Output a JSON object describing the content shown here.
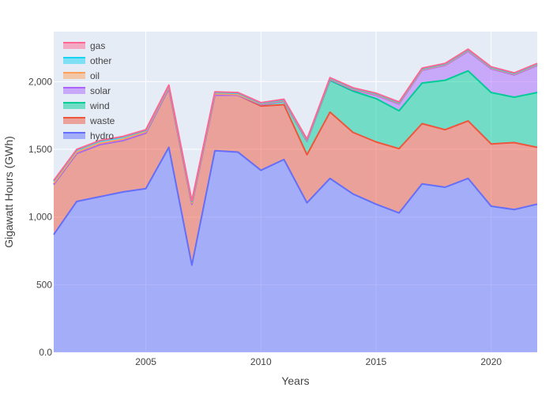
{
  "chart_data": {
    "type": "area",
    "stacked": true,
    "xlabel": "Years",
    "ylabel": "Gigawatt Hours (GWh)",
    "xlim": [
      2001,
      2022
    ],
    "ylim": [
      0,
      2370
    ],
    "x_ticks": [
      2005,
      2010,
      2015,
      2020
    ],
    "y_ticks": [
      0,
      500,
      1000,
      1500,
      2000
    ],
    "y_tick_labels": [
      "0.0",
      "500",
      "1,000",
      "1,500",
      "2,000"
    ],
    "grid": true,
    "legend_position": "top-left",
    "background": "#e5ecf6",
    "x": [
      2001,
      2002,
      2003,
      2004,
      2005,
      2006,
      2007,
      2008,
      2009,
      2010,
      2011,
      2012,
      2013,
      2014,
      2015,
      2016,
      2017,
      2018,
      2019,
      2020,
      2021,
      2022
    ],
    "series": [
      {
        "name": "hydro",
        "color": "#636efa",
        "values": [
          870,
          1115,
          1150,
          1185,
          1210,
          1515,
          645,
          1490,
          1480,
          1345,
          1425,
          1105,
          1285,
          1170,
          1095,
          1030,
          1245,
          1220,
          1285,
          1080,
          1055,
          1095
        ]
      },
      {
        "name": "waste",
        "color": "#ef553b",
        "values": [
          370,
          355,
          385,
          380,
          410,
          435,
          450,
          410,
          420,
          475,
          405,
          355,
          490,
          455,
          460,
          475,
          445,
          425,
          425,
          460,
          495,
          420
        ]
      },
      {
        "name": "wind",
        "color": "#00cc96",
        "values": [
          0,
          0,
          0,
          0,
          0,
          0,
          0,
          0,
          0,
          10,
          25,
          100,
          235,
          305,
          320,
          280,
          300,
          365,
          370,
          380,
          335,
          405
        ]
      },
      {
        "name": "solar",
        "color": "#ab63fa",
        "values": [
          0,
          0,
          0,
          0,
          0,
          0,
          0,
          0,
          0,
          0,
          0,
          0,
          5,
          10,
          25,
          50,
          95,
          110,
          145,
          175,
          165,
          200
        ]
      },
      {
        "name": "oil",
        "color": "#ffa15a",
        "values": [
          10,
          10,
          10,
          10,
          10,
          10,
          10,
          10,
          5,
          5,
          5,
          5,
          5,
          5,
          5,
          5,
          5,
          5,
          5,
          5,
          5,
          5
        ]
      },
      {
        "name": "other",
        "color": "#19d3f3",
        "values": [
          15,
          15,
          15,
          15,
          10,
          10,
          10,
          10,
          10,
          5,
          5,
          5,
          5,
          5,
          5,
          5,
          5,
          5,
          5,
          5,
          5,
          5
        ]
      },
      {
        "name": "gas",
        "color": "#ff6692",
        "values": [
          5,
          5,
          5,
          5,
          5,
          5,
          5,
          5,
          5,
          5,
          5,
          5,
          5,
          5,
          5,
          5,
          5,
          5,
          5,
          5,
          5,
          5
        ]
      }
    ]
  }
}
